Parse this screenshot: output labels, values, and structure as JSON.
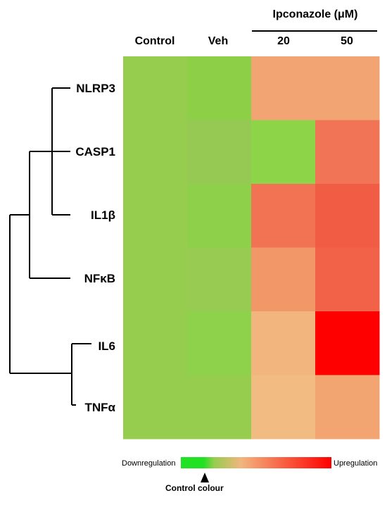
{
  "chart_data": {
    "type": "heatmap",
    "group_label": "Ipconazole (μM)",
    "columns": [
      "Control",
      "Veh",
      "20",
      "50"
    ],
    "rows": [
      {
        "label": "NLRP3",
        "colors": [
          "#96cd4f",
          "#8ecf48",
          "#f2a572",
          "#f2a572"
        ]
      },
      {
        "label": "CASP1",
        "colors": [
          "#96cd4f",
          "#95c953",
          "#8ed449",
          "#f17457"
        ]
      },
      {
        "label": "IL1β",
        "colors": [
          "#96cd4f",
          "#8fd04a",
          "#f27354",
          "#f15c45"
        ]
      },
      {
        "label": "NFκB",
        "colors": [
          "#96cd4f",
          "#97cb52",
          "#f29868",
          "#f16249"
        ]
      },
      {
        "label": "IL6",
        "colors": [
          "#96cd4f",
          "#8dd24a",
          "#f2b57e",
          "#ff0000"
        ]
      },
      {
        "label": "TNFα",
        "colors": [
          "#96cd4f",
          "#96cd4f",
          "#f2bb82",
          "#f2a571"
        ]
      }
    ],
    "legend": {
      "low_label": "Downregulation",
      "high_label": "Upregulation",
      "marker_label": "Control colour",
      "colors": [
        "#22e022",
        "#96cd4f",
        "#f2b57e",
        "#ff0000"
      ]
    }
  }
}
